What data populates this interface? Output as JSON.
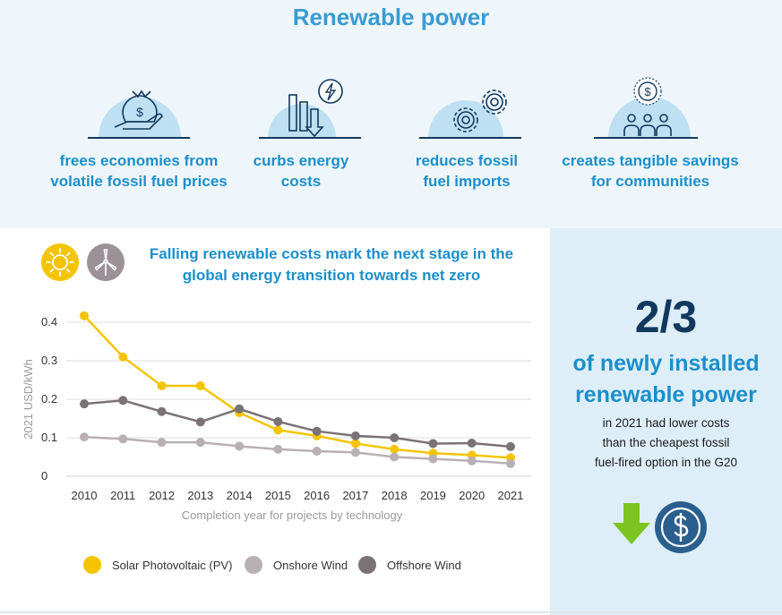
{
  "header": {
    "title": "Renewable power"
  },
  "benefits": [
    {
      "label_l1": "frees economies from",
      "label_l2": "volatile fossil fuel prices",
      "icon": "hand-money-bag-icon"
    },
    {
      "label_l1": "curbs energy",
      "label_l2": "costs",
      "icon": "falling-bars-lightning-icon"
    },
    {
      "label_l1": "reduces fossil",
      "label_l2": "fuel imports",
      "icon": "gears-icon"
    },
    {
      "label_l1": "creates tangible savings",
      "label_l2": "for communities",
      "icon": "community-savings-icon"
    }
  ],
  "chart_section": {
    "title_l1": "Falling renewable costs mark the next stage in the",
    "title_l2": "global energy transition towards net zero",
    "badges": [
      "sun-icon",
      "wind-turbine-icon"
    ]
  },
  "colors": {
    "solar": "#f5c400",
    "onshore": "#b8b0b3",
    "offshore": "#7a7276",
    "accent": "#1c8fca",
    "navy": "#12395d",
    "arrow": "#7cc520"
  },
  "chart_data": {
    "type": "line",
    "title": "",
    "xlabel": "Completion year for projects by technology",
    "ylabel": "2021 USD/kWh",
    "x": [
      "2010",
      "2011",
      "2012",
      "2013",
      "2014",
      "2015",
      "2016",
      "2017",
      "2018",
      "2019",
      "2020",
      "2021"
    ],
    "ylim": [
      0,
      0.4
    ],
    "yticks": [
      "0",
      "0.1",
      "0.2",
      "0.3",
      "0.4"
    ],
    "grid": true,
    "legend_position": "bottom",
    "series": [
      {
        "name": "Solar Photovoltaic (PV)",
        "color": "#f5c400",
        "values": [
          0.417,
          0.31,
          0.235,
          0.235,
          0.165,
          0.12,
          0.105,
          0.085,
          0.07,
          0.06,
          0.055,
          0.048
        ]
      },
      {
        "name": "Onshore Wind",
        "color": "#b8b0b3",
        "values": [
          0.102,
          0.097,
          0.088,
          0.088,
          0.078,
          0.07,
          0.065,
          0.062,
          0.05,
          0.045,
          0.04,
          0.033
        ]
      },
      {
        "name": "Offshore Wind",
        "color": "#7a7276",
        "values": [
          0.188,
          0.197,
          0.168,
          0.141,
          0.175,
          0.142,
          0.117,
          0.105,
          0.1,
          0.085,
          0.086,
          0.077
        ]
      }
    ]
  },
  "stat": {
    "value": "2/3",
    "line1": "of newly installed",
    "line2": "renewable power",
    "desc_l1": "in 2021 had lower costs",
    "desc_l2": "than the cheapest fossil",
    "desc_l3": "fuel-fired option in the G20",
    "icons": [
      "down-arrow-icon",
      "dollar-icon"
    ]
  }
}
